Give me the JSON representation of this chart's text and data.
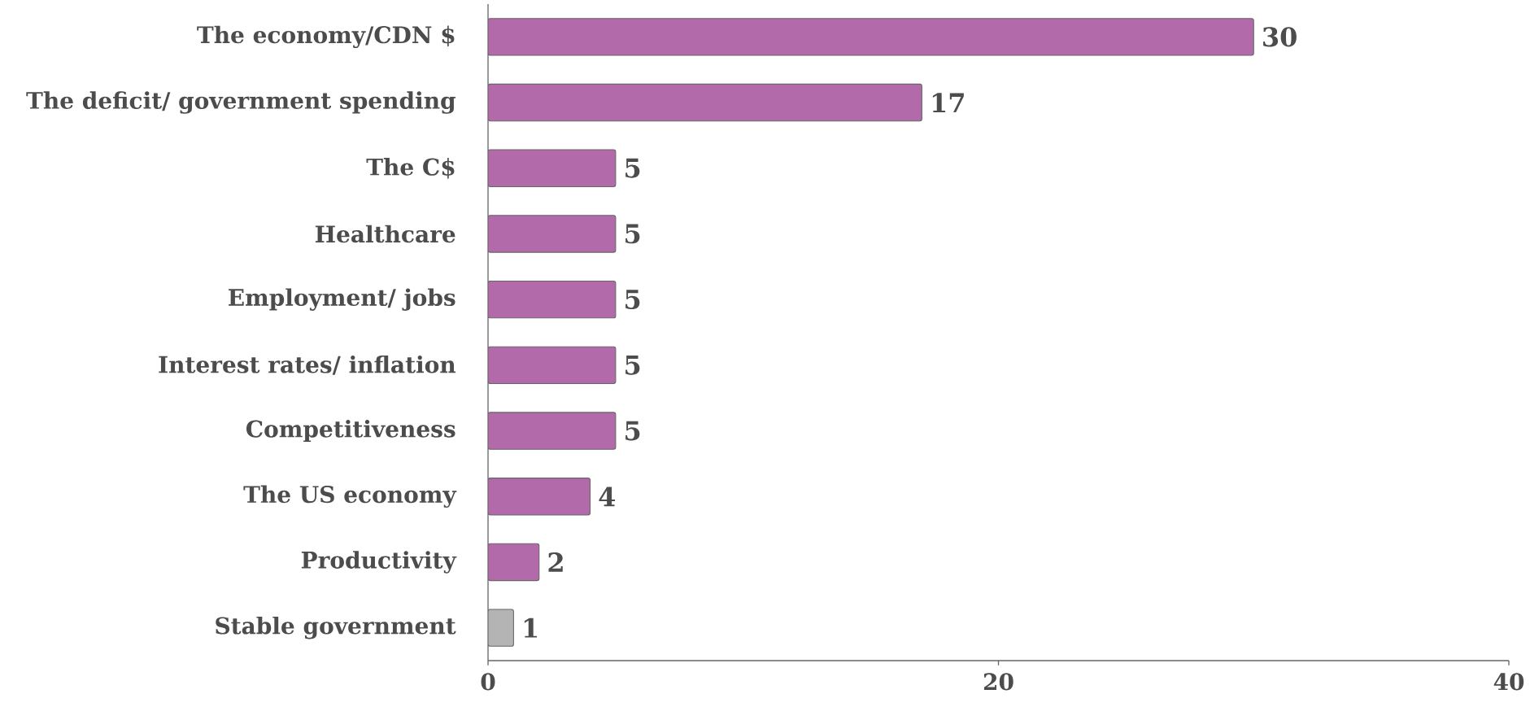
{
  "chart_data": {
    "type": "bar",
    "orientation": "horizontal",
    "categories": [
      "The economy/CDN $",
      "The deficit/ government spending",
      "The C$",
      "Healthcare",
      "Employment/ jobs",
      "Interest rates/ inflation",
      "Competitiveness",
      "The US economy",
      "Productivity",
      "Stable government"
    ],
    "values": [
      30,
      17,
      5,
      5,
      5,
      5,
      5,
      4,
      2,
      1
    ],
    "colors": [
      "#b36aaa",
      "#b36aaa",
      "#b36aaa",
      "#b36aaa",
      "#b36aaa",
      "#b36aaa",
      "#b36aaa",
      "#b36aaa",
      "#b36aaa",
      "#b4b4b4"
    ],
    "xlim": [
      0,
      40
    ],
    "xticks": [
      0,
      20,
      40
    ],
    "data_labels": true
  }
}
